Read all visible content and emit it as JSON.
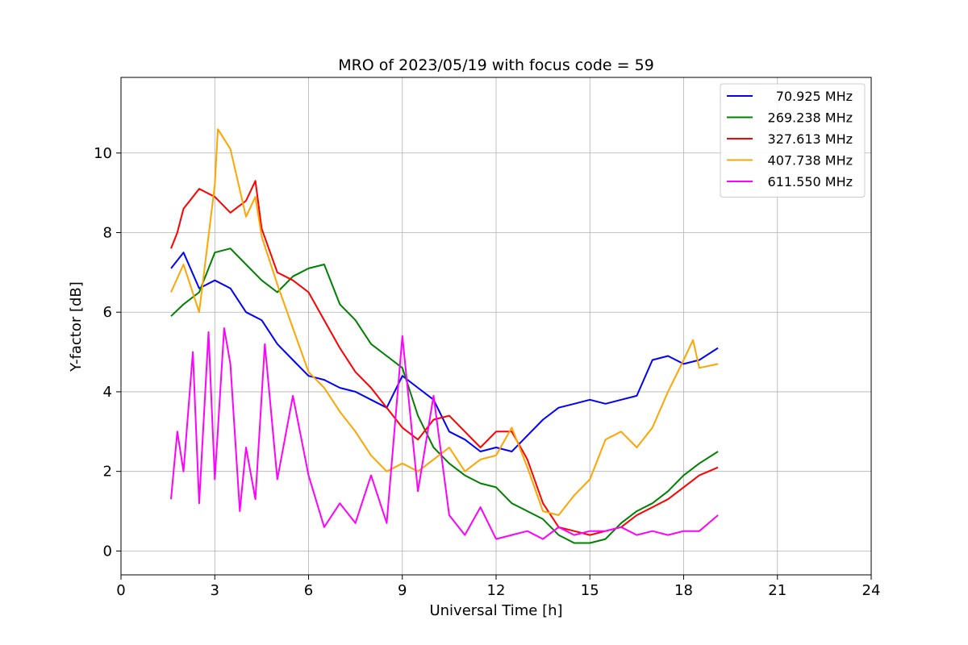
{
  "chart_data": {
    "type": "line",
    "title": "MRO of 2023/05/19 with focus code = 59",
    "xlabel": "Universal Time [h]",
    "ylabel": "Y-factor [dB]",
    "xlim": [
      0,
      24
    ],
    "ylim": [
      -0.6,
      11.9
    ],
    "xticks": [
      0,
      3,
      6,
      9,
      12,
      15,
      18,
      21,
      24
    ],
    "yticks": [
      0,
      2,
      4,
      6,
      8,
      10
    ],
    "grid": true,
    "legend_position": "top-right",
    "series": [
      {
        "name": "70.925 MHz",
        "color": "#0000ff",
        "x": [
          1.6,
          2.0,
          2.5,
          3.0,
          3.5,
          4.0,
          4.5,
          5.0,
          5.5,
          6.0,
          6.5,
          7.0,
          7.5,
          8.0,
          8.5,
          9.0,
          9.5,
          10.0,
          10.5,
          11.0,
          11.5,
          12.0,
          12.5,
          13.0,
          13.5,
          14.0,
          14.5,
          15.0,
          15.5,
          16.0,
          16.5,
          17.0,
          17.5,
          18.0,
          18.5,
          19.1
        ],
        "y": [
          7.1,
          7.5,
          6.6,
          6.8,
          6.6,
          6.0,
          5.8,
          5.2,
          4.8,
          4.4,
          4.3,
          4.1,
          4.0,
          3.8,
          3.6,
          4.4,
          4.1,
          3.8,
          3.0,
          2.8,
          2.5,
          2.6,
          2.5,
          2.9,
          3.3,
          3.6,
          3.7,
          3.8,
          3.7,
          3.8,
          3.9,
          4.8,
          4.9,
          4.7,
          4.8,
          5.1
        ]
      },
      {
        "name": "269.238 MHz",
        "color": "#008000",
        "x": [
          1.6,
          2.0,
          2.5,
          3.0,
          3.5,
          4.0,
          4.5,
          5.0,
          5.5,
          6.0,
          6.5,
          7.0,
          7.5,
          8.0,
          8.5,
          9.0,
          9.5,
          10.0,
          10.5,
          11.0,
          11.5,
          12.0,
          12.5,
          13.0,
          13.5,
          14.0,
          14.5,
          15.0,
          15.5,
          16.0,
          16.5,
          17.0,
          17.5,
          18.0,
          18.5,
          19.1
        ],
        "y": [
          5.9,
          6.2,
          6.5,
          7.5,
          7.6,
          7.2,
          6.8,
          6.5,
          6.9,
          7.1,
          7.2,
          6.2,
          5.8,
          5.2,
          4.9,
          4.6,
          3.4,
          2.6,
          2.2,
          1.9,
          1.7,
          1.6,
          1.2,
          1.0,
          0.8,
          0.4,
          0.2,
          0.2,
          0.3,
          0.7,
          1.0,
          1.2,
          1.5,
          1.9,
          2.2,
          2.5
        ]
      },
      {
        "name": "327.613 MHz",
        "color": "#ff0000",
        "x": [
          1.6,
          1.8,
          2.0,
          2.5,
          3.0,
          3.5,
          4.0,
          4.3,
          4.5,
          5.0,
          5.5,
          6.0,
          6.5,
          7.0,
          7.5,
          8.0,
          8.5,
          9.0,
          9.5,
          10.0,
          10.5,
          11.0,
          11.5,
          12.0,
          12.5,
          13.0,
          13.5,
          14.0,
          14.5,
          15.0,
          15.5,
          16.0,
          16.5,
          17.0,
          17.5,
          18.0,
          18.5,
          19.1
        ],
        "y": [
          7.6,
          8.0,
          8.6,
          9.1,
          8.9,
          8.5,
          8.8,
          9.3,
          8.1,
          7.0,
          6.8,
          6.5,
          5.8,
          5.1,
          4.5,
          4.1,
          3.6,
          3.1,
          2.8,
          3.3,
          3.4,
          3.0,
          2.6,
          3.0,
          3.0,
          2.3,
          1.2,
          0.6,
          0.5,
          0.4,
          0.5,
          0.6,
          0.9,
          1.1,
          1.3,
          1.6,
          1.9,
          2.1
        ]
      },
      {
        "name": "407.738 MHz",
        "color": "#ffa500",
        "x": [
          1.6,
          2.0,
          2.5,
          3.0,
          3.1,
          3.5,
          4.0,
          4.3,
          4.5,
          5.0,
          5.5,
          6.0,
          6.5,
          7.0,
          7.5,
          8.0,
          8.5,
          9.0,
          9.5,
          10.0,
          10.5,
          11.0,
          11.5,
          12.0,
          12.5,
          13.0,
          13.5,
          14.0,
          14.5,
          15.0,
          15.5,
          16.0,
          16.5,
          17.0,
          17.5,
          18.0,
          18.3,
          18.5,
          19.1
        ],
        "y": [
          6.5,
          7.2,
          6.0,
          9.2,
          10.6,
          10.1,
          8.4,
          8.9,
          7.9,
          6.7,
          5.6,
          4.5,
          4.1,
          3.5,
          3.0,
          2.4,
          2.0,
          2.2,
          2.0,
          2.3,
          2.6,
          2.0,
          2.3,
          2.4,
          3.1,
          2.1,
          1.0,
          0.9,
          1.4,
          1.8,
          2.8,
          3.0,
          2.6,
          3.1,
          4.0,
          4.8,
          5.3,
          4.6,
          4.7
        ]
      },
      {
        "name": "611.550 MHz",
        "color": "#ff00ff",
        "x": [
          1.6,
          1.8,
          2.0,
          2.3,
          2.5,
          2.8,
          3.0,
          3.3,
          3.5,
          3.8,
          4.0,
          4.3,
          4.6,
          5.0,
          5.5,
          6.0,
          6.5,
          7.0,
          7.5,
          8.0,
          8.5,
          9.0,
          9.5,
          10.0,
          10.5,
          11.0,
          11.5,
          12.0,
          12.5,
          13.0,
          13.5,
          14.0,
          14.5,
          15.0,
          15.5,
          16.0,
          16.5,
          17.0,
          17.5,
          18.0,
          18.5,
          19.1
        ],
        "y": [
          1.3,
          3.0,
          2.0,
          5.0,
          1.2,
          5.5,
          1.8,
          5.6,
          4.7,
          1.0,
          2.6,
          1.3,
          5.2,
          1.8,
          3.9,
          1.9,
          0.6,
          1.2,
          0.7,
          1.9,
          0.7,
          5.4,
          1.5,
          3.9,
          0.9,
          0.4,
          1.1,
          0.3,
          0.4,
          0.5,
          0.3,
          0.6,
          0.4,
          0.5,
          0.5,
          0.6,
          0.4,
          0.5,
          0.4,
          0.5,
          0.5,
          0.9
        ]
      }
    ]
  }
}
